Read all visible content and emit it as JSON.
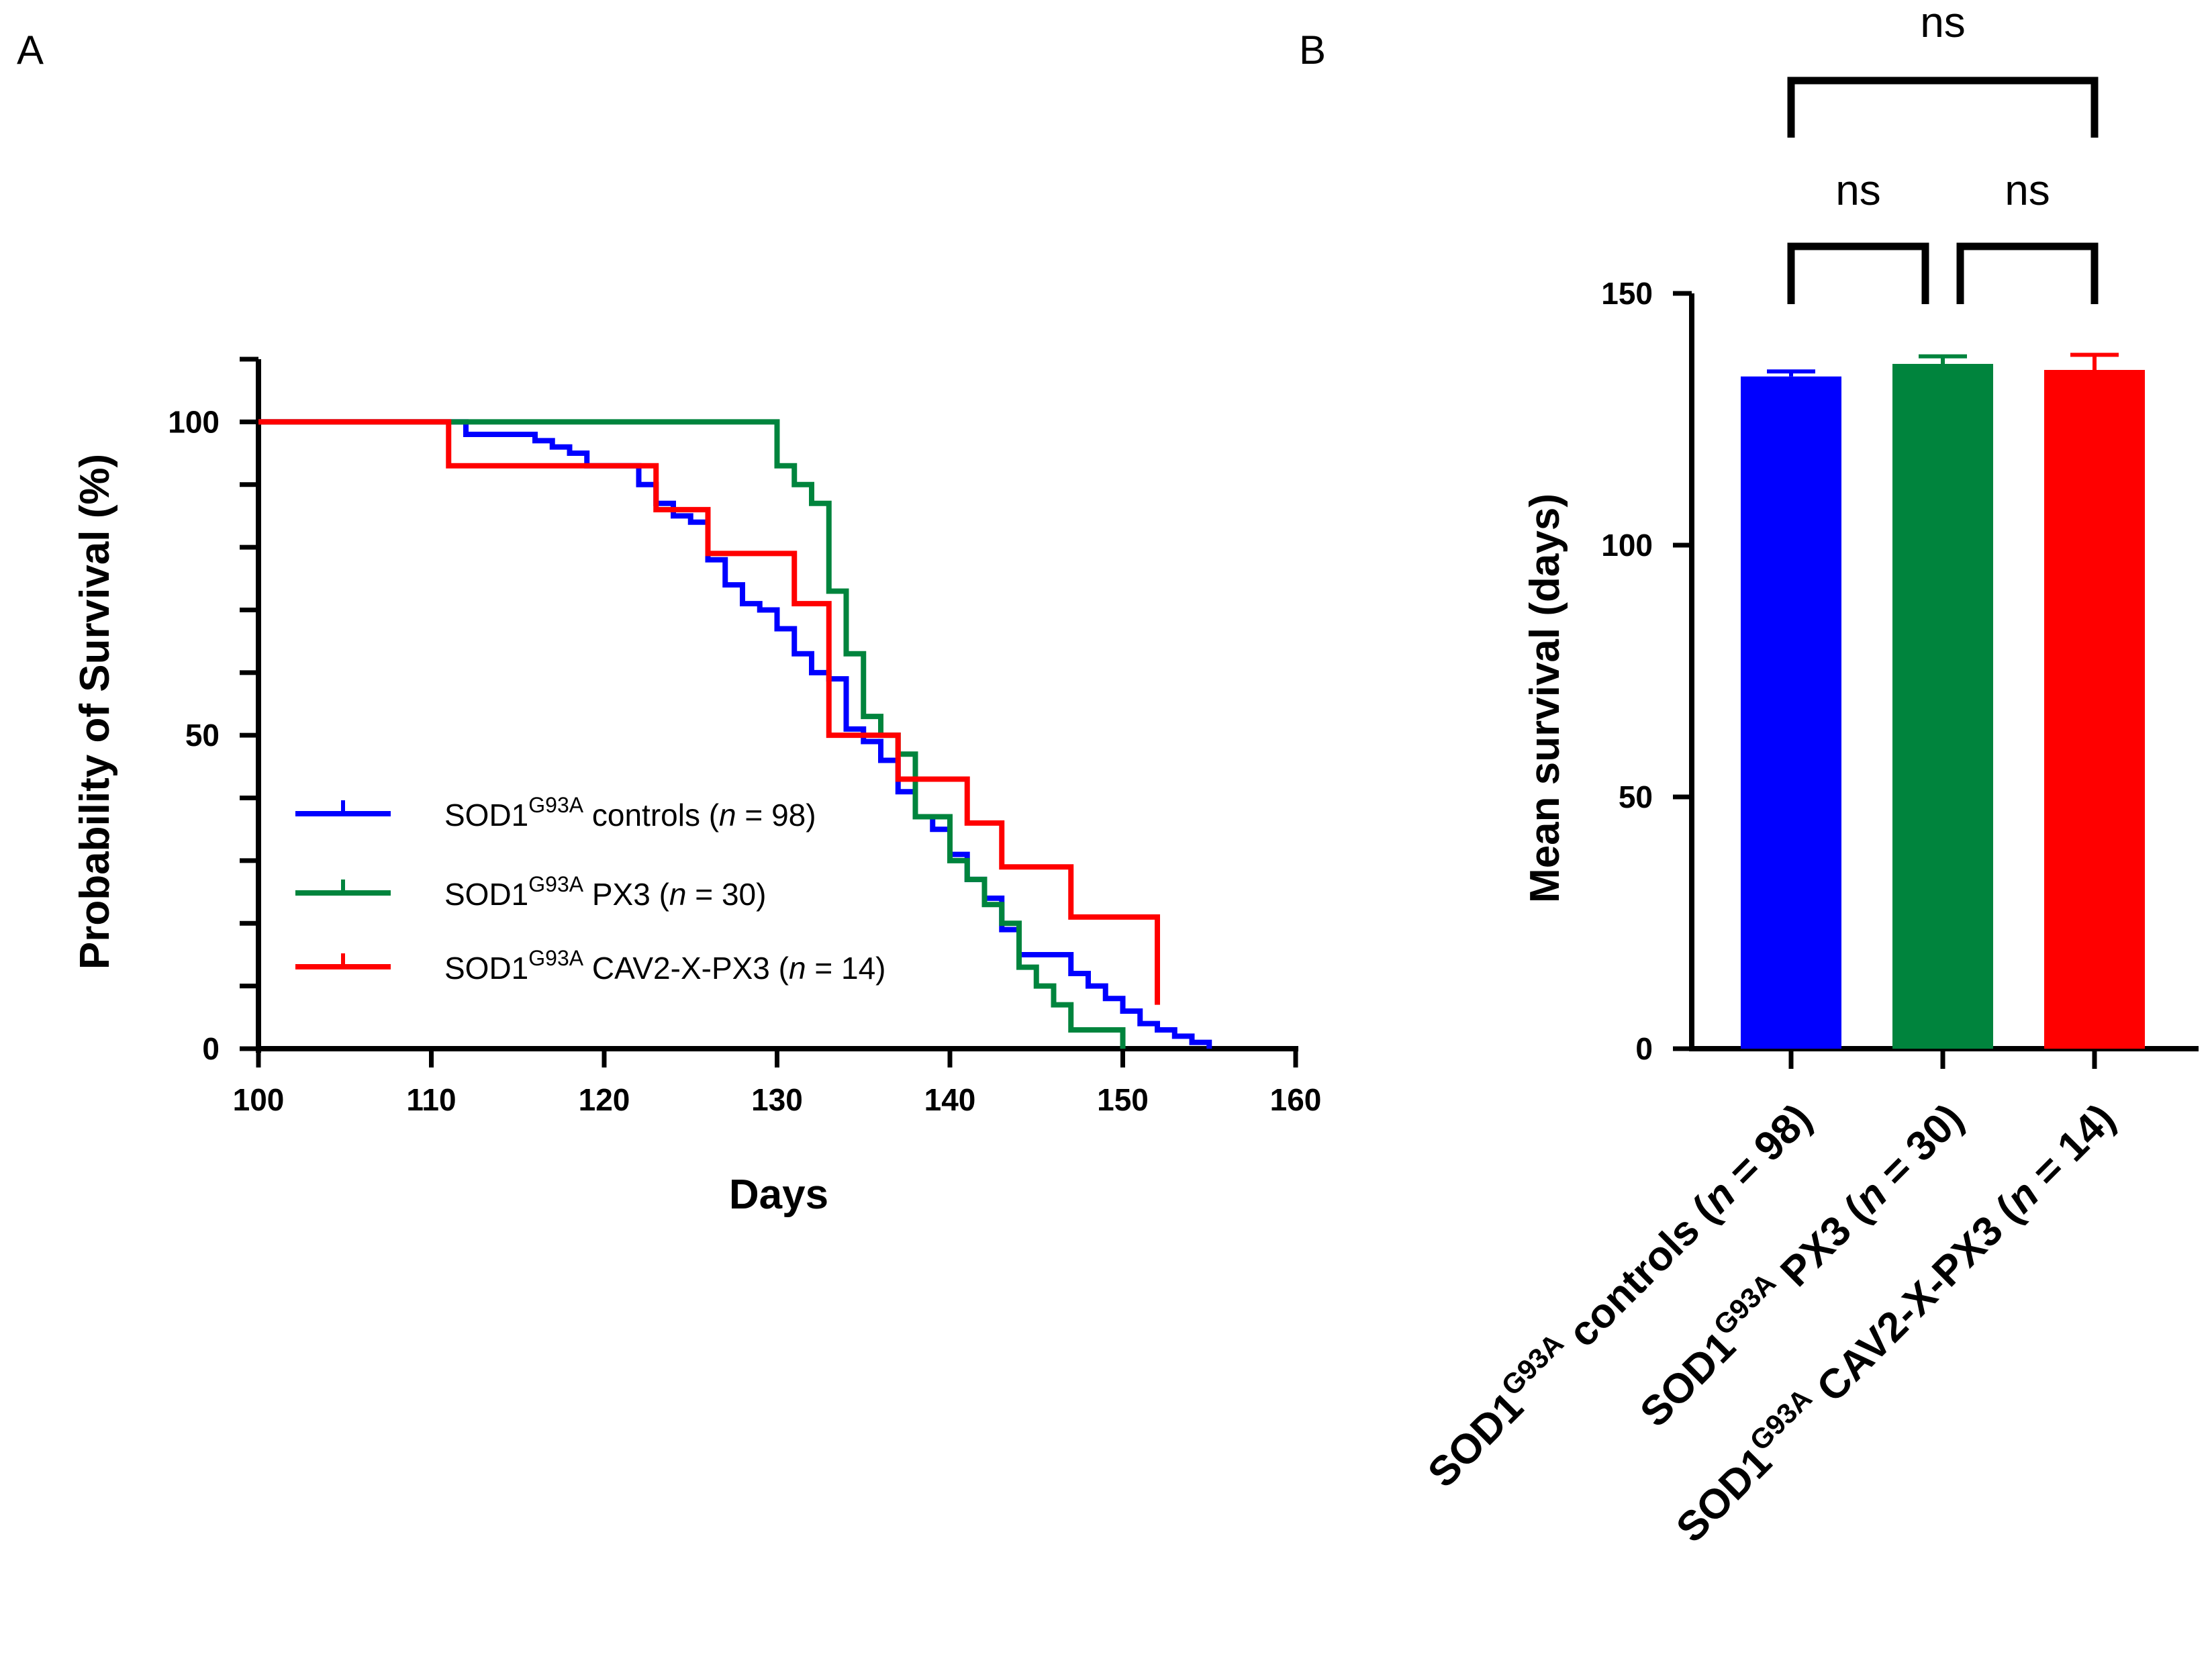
{
  "panels": {
    "a_label": "A",
    "b_label": "B"
  },
  "colors": {
    "controls": "#0000ff",
    "px3": "#00843d",
    "cav2": "#ff0000",
    "axis": "#000000"
  },
  "legend": [
    {
      "base": "SOD1",
      "sup": "G93A",
      "text": " controls (",
      "n_italic": "n",
      "eq": " = 98)"
    },
    {
      "base": "SOD1",
      "sup": "G93A",
      "text": " PX3 (",
      "n_italic": "n",
      "eq": " = 30)"
    },
    {
      "base": "SOD1",
      "sup": "G93A",
      "text": "  CAV2-X-PX3 (",
      "n_italic": "n",
      "eq": " = 14)"
    }
  ],
  "chart_data": [
    {
      "type": "line",
      "subtype": "kaplan-meier step",
      "title": "",
      "xlabel": "Days",
      "ylabel": "Probability of Survival (%)",
      "xlim": [
        100,
        160
      ],
      "ylim": [
        0,
        110
      ],
      "xticks": [
        100,
        110,
        120,
        130,
        140,
        150,
        160
      ],
      "yticks_labeled": [
        0,
        50,
        100
      ],
      "legend_position": "bottom-left",
      "series": [
        {
          "name": "SOD1G93A controls (n = 98)",
          "color_key": "controls",
          "x": [
            100,
            111,
            112,
            115,
            116,
            117,
            118,
            119,
            121,
            122,
            123,
            124,
            125,
            126,
            127,
            128,
            129,
            130,
            131,
            132,
            133,
            134,
            135,
            136,
            137,
            138,
            139,
            140,
            141,
            142,
            143,
            144,
            145,
            146,
            147,
            148,
            149,
            150,
            151,
            152,
            153,
            154,
            155
          ],
          "y": [
            100,
            100,
            98,
            98,
            97,
            96,
            95,
            93,
            93,
            90,
            87,
            85,
            84,
            78,
            74,
            71,
            70,
            67,
            63,
            60,
            59,
            51,
            49,
            46,
            41,
            37,
            35,
            31,
            27,
            24,
            19,
            15,
            15,
            15,
            12,
            10,
            8,
            6,
            4,
            3,
            2,
            1,
            0
          ]
        },
        {
          "name": "SOD1G93A PX3 (n = 30)",
          "color_key": "px3",
          "x": [
            100,
            124,
            130,
            131,
            132,
            133,
            134,
            135,
            136,
            137,
            138,
            139,
            140,
            141,
            142,
            143,
            144,
            145,
            146,
            147,
            150
          ],
          "y": [
            100,
            100,
            93,
            90,
            87,
            73,
            63,
            53,
            50,
            47,
            37,
            37,
            30,
            27,
            23,
            20,
            13,
            10,
            7,
            3,
            0
          ]
        },
        {
          "name": "SOD1G93A CAV2-X-PX3 (n = 14)",
          "color_key": "cav2",
          "x": [
            100,
            111,
            123,
            126,
            131,
            133,
            135,
            137,
            141,
            143,
            147,
            152
          ],
          "y": [
            100,
            93,
            86,
            79,
            71,
            50,
            50,
            43,
            36,
            29,
            21,
            7
          ]
        }
      ]
    },
    {
      "type": "bar",
      "title": "",
      "xlabel": "",
      "ylabel": "Mean survival  (days)",
      "ylim": [
        0,
        150
      ],
      "yticks": [
        0,
        50,
        100,
        150
      ],
      "categories": [
        {
          "base": "SOD1",
          "sup": "G93A",
          "text": " controls (",
          "n_italic": "n",
          "eq": " = 98)"
        },
        {
          "base": "SOD1",
          "sup": "G93A",
          "text": " PX3 (",
          "n_italic": "n",
          "eq": " = 30)"
        },
        {
          "base": "SOD1",
          "sup": "G93A",
          "text": "  CAV2-X-PX3 (",
          "n_italic": "n",
          "eq": " = 14)"
        }
      ],
      "values": [
        133.5,
        136,
        134.8
      ],
      "error_sem": [
        1.0,
        1.5,
        3.0
      ],
      "bar_color_keys": [
        "controls",
        "px3",
        "cav2"
      ],
      "comparisons": [
        {
          "pair": [
            0,
            1
          ],
          "label": "ns"
        },
        {
          "pair": [
            1,
            2
          ],
          "label": "ns"
        },
        {
          "pair": [
            0,
            2
          ],
          "label": "ns"
        }
      ]
    }
  ]
}
